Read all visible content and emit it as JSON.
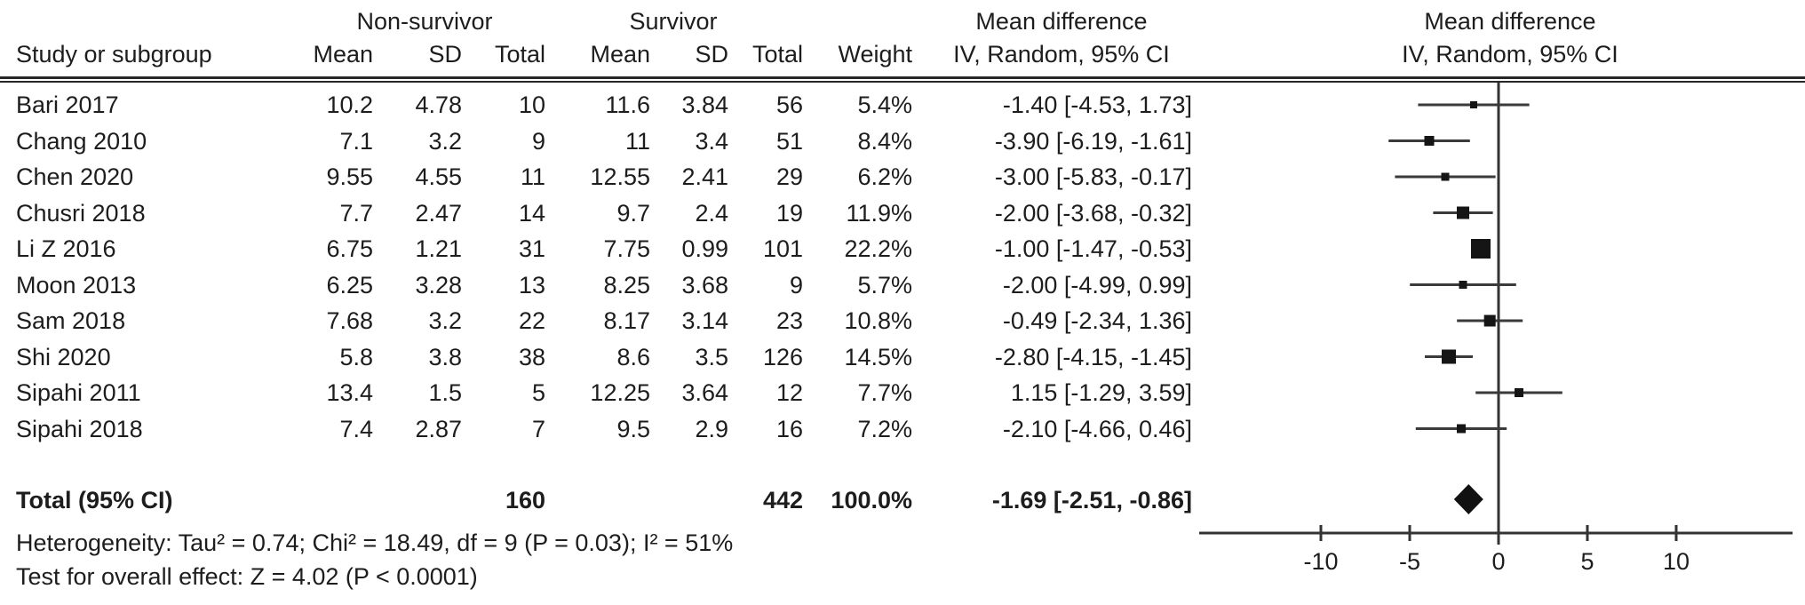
{
  "table": {
    "group_headers": {
      "nonsurvivor": "Non-survivor",
      "survivor": "Survivor",
      "mean_difference": "Mean difference"
    },
    "plot_header": {
      "line1": "Mean difference",
      "line2": "IV, Random, 95% CI"
    },
    "col_headers": {
      "study": "Study or subgroup",
      "mean": "Mean",
      "sd": "SD",
      "total": "Total",
      "weight": "Weight",
      "iv": "IV, Random, 95% CI"
    },
    "rows": [
      {
        "study": "Bari 2017",
        "ns_mean": "10.2",
        "ns_sd": "4.78",
        "ns_total": "10",
        "s_mean": "11.6",
        "s_sd": "3.84",
        "s_total": "56",
        "weight": "5.4%",
        "md": "-1.40 [-4.53, 1.73]"
      },
      {
        "study": "Chang 2010",
        "ns_mean": "7.1",
        "ns_sd": "3.2",
        "ns_total": "9",
        "s_mean": "11",
        "s_sd": "3.4",
        "s_total": "51",
        "weight": "8.4%",
        "md": "-3.90 [-6.19, -1.61]"
      },
      {
        "study": "Chen 2020",
        "ns_mean": "9.55",
        "ns_sd": "4.55",
        "ns_total": "11",
        "s_mean": "12.55",
        "s_sd": "2.41",
        "s_total": "29",
        "weight": "6.2%",
        "md": "-3.00 [-5.83, -0.17]"
      },
      {
        "study": "Chusri 2018",
        "ns_mean": "7.7",
        "ns_sd": "2.47",
        "ns_total": "14",
        "s_mean": "9.7",
        "s_sd": "2.4",
        "s_total": "19",
        "weight": "11.9%",
        "md": "-2.00 [-3.68, -0.32]"
      },
      {
        "study": "Li Z 2016",
        "ns_mean": "6.75",
        "ns_sd": "1.21",
        "ns_total": "31",
        "s_mean": "7.75",
        "s_sd": "0.99",
        "s_total": "101",
        "weight": "22.2%",
        "md": "-1.00 [-1.47, -0.53]"
      },
      {
        "study": "Moon 2013",
        "ns_mean": "6.25",
        "ns_sd": "3.28",
        "ns_total": "13",
        "s_mean": "8.25",
        "s_sd": "3.68",
        "s_total": "9",
        "weight": "5.7%",
        "md": "-2.00 [-4.99, 0.99]"
      },
      {
        "study": "Sam 2018",
        "ns_mean": "7.68",
        "ns_sd": "3.2",
        "ns_total": "22",
        "s_mean": "8.17",
        "s_sd": "3.14",
        "s_total": "23",
        "weight": "10.8%",
        "md": "-0.49 [-2.34, 1.36]"
      },
      {
        "study": "Shi 2020",
        "ns_mean": "5.8",
        "ns_sd": "3.8",
        "ns_total": "38",
        "s_mean": "8.6",
        "s_sd": "3.5",
        "s_total": "126",
        "weight": "14.5%",
        "md": "-2.80 [-4.15, -1.45]"
      },
      {
        "study": "Sipahi 2011",
        "ns_mean": "13.4",
        "ns_sd": "1.5",
        "ns_total": "5",
        "s_mean": "12.25",
        "s_sd": "3.64",
        "s_total": "12",
        "weight": "7.7%",
        "md": "1.15 [-1.29, 3.59]"
      },
      {
        "study": "Sipahi 2018",
        "ns_mean": "7.4",
        "ns_sd": "2.87",
        "ns_total": "7",
        "s_mean": "9.5",
        "s_sd": "2.9",
        "s_total": "16",
        "weight": "7.2%",
        "md": "-2.10 [-4.66, 0.46]"
      }
    ],
    "total_row": {
      "study": "Total (95% CI)",
      "ns_total": "160",
      "s_total": "442",
      "weight": "100.0%",
      "md": "-1.69 [-2.51, -0.86]"
    },
    "footnotes": {
      "heterogeneity": "Heterogeneity: Tau² = 0.74; Chi² = 18.49, df = 9 (P = 0.03); I² = 51%",
      "overall_effect": "Test for overall effect: Z = 4.02 (P < 0.0001)"
    }
  },
  "chart_data": {
    "type": "forest",
    "effect_measure": "Mean difference",
    "method": "IV, Random, 95% CI",
    "groups": [
      "Non-survivor",
      "Survivor"
    ],
    "studies": [
      {
        "name": "Bari 2017",
        "g1": {
          "mean": 10.2,
          "sd": 4.78,
          "total": 10
        },
        "g2": {
          "mean": 11.6,
          "sd": 3.84,
          "total": 56
        },
        "weight_pct": 5.4,
        "est": -1.4,
        "ci": [
          -4.53,
          1.73
        ]
      },
      {
        "name": "Chang 2010",
        "g1": {
          "mean": 7.1,
          "sd": 3.2,
          "total": 9
        },
        "g2": {
          "mean": 11,
          "sd": 3.4,
          "total": 51
        },
        "weight_pct": 8.4,
        "est": -3.9,
        "ci": [
          -6.19,
          -1.61
        ]
      },
      {
        "name": "Chen 2020",
        "g1": {
          "mean": 9.55,
          "sd": 4.55,
          "total": 11
        },
        "g2": {
          "mean": 12.55,
          "sd": 2.41,
          "total": 29
        },
        "weight_pct": 6.2,
        "est": -3.0,
        "ci": [
          -5.83,
          -0.17
        ]
      },
      {
        "name": "Chusri 2018",
        "g1": {
          "mean": 7.7,
          "sd": 2.47,
          "total": 14
        },
        "g2": {
          "mean": 9.7,
          "sd": 2.4,
          "total": 19
        },
        "weight_pct": 11.9,
        "est": -2.0,
        "ci": [
          -3.68,
          -0.32
        ]
      },
      {
        "name": "Li Z 2016",
        "g1": {
          "mean": 6.75,
          "sd": 1.21,
          "total": 31
        },
        "g2": {
          "mean": 7.75,
          "sd": 0.99,
          "total": 101
        },
        "weight_pct": 22.2,
        "est": -1.0,
        "ci": [
          -1.47,
          -0.53
        ]
      },
      {
        "name": "Moon 2013",
        "g1": {
          "mean": 6.25,
          "sd": 3.28,
          "total": 13
        },
        "g2": {
          "mean": 8.25,
          "sd": 3.68,
          "total": 9
        },
        "weight_pct": 5.7,
        "est": -2.0,
        "ci": [
          -4.99,
          0.99
        ]
      },
      {
        "name": "Sam 2018",
        "g1": {
          "mean": 7.68,
          "sd": 3.2,
          "total": 22
        },
        "g2": {
          "mean": 8.17,
          "sd": 3.14,
          "total": 23
        },
        "weight_pct": 10.8,
        "est": -0.49,
        "ci": [
          -2.34,
          1.36
        ]
      },
      {
        "name": "Shi 2020",
        "g1": {
          "mean": 5.8,
          "sd": 3.8,
          "total": 38
        },
        "g2": {
          "mean": 8.6,
          "sd": 3.5,
          "total": 126
        },
        "weight_pct": 14.5,
        "est": -2.8,
        "ci": [
          -4.15,
          -1.45
        ]
      },
      {
        "name": "Sipahi 2011",
        "g1": {
          "mean": 13.4,
          "sd": 1.5,
          "total": 5
        },
        "g2": {
          "mean": 12.25,
          "sd": 3.64,
          "total": 12
        },
        "weight_pct": 7.7,
        "est": 1.15,
        "ci": [
          -1.29,
          3.59
        ]
      },
      {
        "name": "Sipahi 2018",
        "g1": {
          "mean": 7.4,
          "sd": 2.87,
          "total": 7
        },
        "g2": {
          "mean": 9.5,
          "sd": 2.9,
          "total": 16
        },
        "weight_pct": 7.2,
        "est": -2.1,
        "ci": [
          -4.66,
          0.46
        ]
      }
    ],
    "total": {
      "name": "Total (95% CI)",
      "g1_total": 160,
      "g2_total": 442,
      "weight_pct": 100.0,
      "est": -1.69,
      "ci": [
        -2.51,
        -0.86
      ]
    },
    "heterogeneity": "Tau² = 0.74; Chi² = 18.49, df = 9 (P = 0.03); I² = 51%",
    "overall_effect": "Z = 4.02 (P < 0.0001)",
    "axis": {
      "ticks": [
        -10,
        -5,
        0,
        5,
        10
      ],
      "xlim": [
        -16.8,
        16.5
      ],
      "zero_line": 0,
      "grid": false
    }
  }
}
